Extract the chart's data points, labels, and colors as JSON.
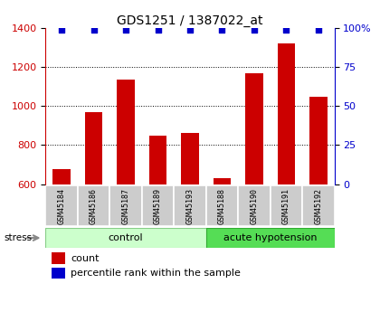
{
  "title": "GDS1251 / 1387022_at",
  "samples": [
    "GSM45184",
    "GSM45186",
    "GSM45187",
    "GSM45189",
    "GSM45193",
    "GSM45188",
    "GSM45190",
    "GSM45191",
    "GSM45192"
  ],
  "counts": [
    675,
    970,
    1135,
    850,
    860,
    630,
    1170,
    1320,
    1050
  ],
  "percentiles": [
    99,
    99,
    99,
    99,
    99,
    99,
    99,
    99,
    99
  ],
  "n_control": 5,
  "n_acute": 4,
  "bar_color": "#cc0000",
  "dot_color": "#0000cc",
  "ylim_left": [
    600,
    1400
  ],
  "ylim_right": [
    0,
    100
  ],
  "yticks_left": [
    600,
    800,
    1000,
    1200,
    1400
  ],
  "yticks_right": [
    0,
    25,
    50,
    75,
    100
  ],
  "yticklabels_right": [
    "0",
    "25",
    "50",
    "75",
    "100%"
  ],
  "left_axis_color": "#cc0000",
  "right_axis_color": "#0000cc",
  "grid_lines": [
    800,
    1000,
    1200
  ],
  "control_color_light": "#ccffcc",
  "control_color_border": "#88cc88",
  "acute_color": "#55dd55",
  "acute_color_border": "#33aa33",
  "sample_box_color": "#cccccc",
  "stress_label": "stress",
  "control_label": "control",
  "acute_label": "acute hypotension",
  "legend_count_label": "count",
  "legend_percentile_label": "percentile rank within the sample",
  "title_fontsize": 10,
  "tick_fontsize": 8,
  "sample_fontsize": 6,
  "group_fontsize": 8,
  "legend_fontsize": 8
}
